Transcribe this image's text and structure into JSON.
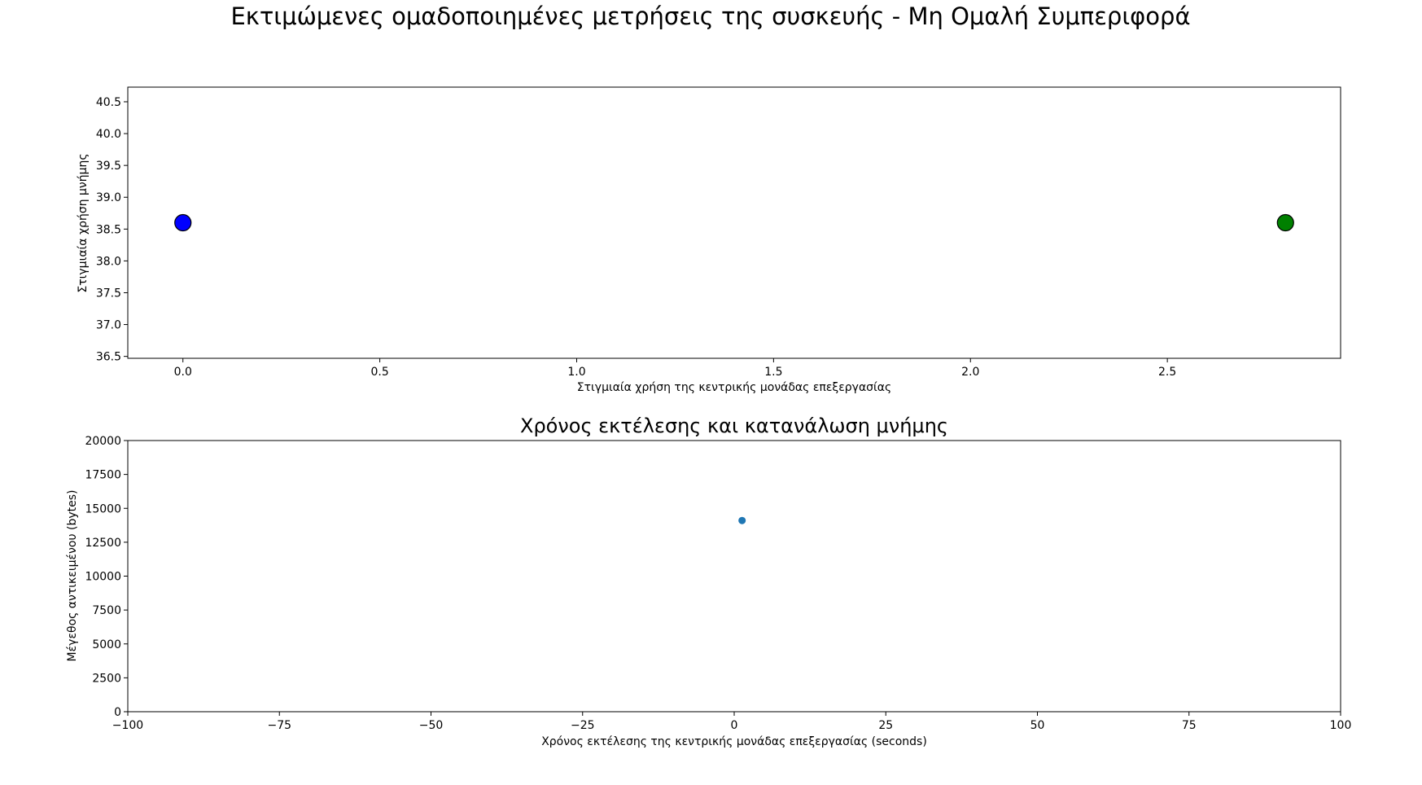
{
  "figure": {
    "suptitle": "Εκτιμώμενες ομαδοποιημένες μετρήσεις της συσκευής - Μη Ομαλή Συμπεριφορά"
  },
  "chart_data": [
    {
      "type": "scatter",
      "title": "",
      "xlabel": "Στιγμιαία χρήση της κεντρικής μονάδας επεξεργασίας",
      "ylabel": "Στιγμιαία χρήση μνήμης",
      "xlim": [
        -0.14,
        2.94
      ],
      "ylim": [
        36.47,
        40.73
      ],
      "xticks": [
        "0.0",
        "0.5",
        "1.0",
        "1.5",
        "2.0",
        "2.5"
      ],
      "yticks": [
        "36.5",
        "37.0",
        "37.5",
        "38.0",
        "38.5",
        "39.0",
        "39.5",
        "40.0",
        "40.5"
      ],
      "grid": false,
      "points": [
        {
          "x": 0.0,
          "y": 38.6,
          "color": "#0000ff"
        },
        {
          "x": 2.8,
          "y": 38.6,
          "color": "#008000"
        }
      ]
    },
    {
      "type": "scatter",
      "title": "Χρόνος εκτέλεσης και κατανάλωση μνήμης",
      "xlabel": "Χρόνος εκτέλεσης της κεντρικής μονάδας επεξεργασίας (seconds)",
      "ylabel": "Μέγεθος αντικειμένου (bytes)",
      "xlim": [
        -100,
        100
      ],
      "ylim": [
        0,
        20000
      ],
      "xticks": [
        "−100",
        "−75",
        "−50",
        "−25",
        "0",
        "25",
        "50",
        "75",
        "100"
      ],
      "yticks": [
        "0",
        "2500",
        "5000",
        "7500",
        "10000",
        "12500",
        "15000",
        "17500",
        "20000"
      ],
      "grid": false,
      "points": [
        {
          "x": 1.3,
          "y": 14100,
          "color": "#1f77b4"
        }
      ]
    }
  ]
}
